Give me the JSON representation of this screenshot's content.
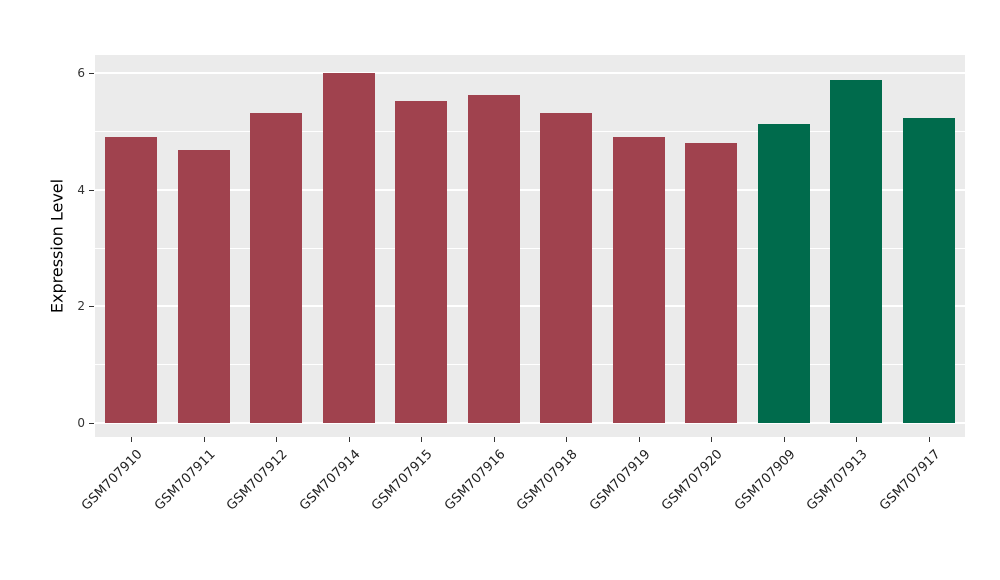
{
  "chart_data": {
    "type": "bar",
    "title": "",
    "xlabel": "",
    "ylabel": "Expression Level",
    "categories": [
      "GSM707910",
      "GSM707911",
      "GSM707912",
      "GSM707914",
      "GSM707915",
      "GSM707916",
      "GSM707918",
      "GSM707919",
      "GSM707920",
      "GSM707909",
      "GSM707913",
      "GSM707917"
    ],
    "values": [
      4.9,
      4.68,
      5.31,
      6.0,
      5.52,
      5.62,
      5.31,
      4.9,
      4.8,
      5.13,
      5.88,
      5.23
    ],
    "bar_colors": [
      "#A0424E",
      "#A0424E",
      "#A0424E",
      "#A0424E",
      "#A0424E",
      "#A0424E",
      "#A0424E",
      "#A0424E",
      "#A0424E",
      "#006B4C",
      "#006B4C",
      "#006B4C"
    ],
    "group_colors": {
      "group1": "#A0424E",
      "group2": "#006B4C"
    },
    "ylim": [
      0,
      6.3
    ],
    "yticks": [
      0,
      2,
      4,
      6
    ],
    "ytick_labels": [
      "0",
      "2",
      "4",
      "6"
    ],
    "minor_ticks": [
      1,
      3,
      5
    ],
    "grid": "on",
    "legend": "none",
    "panel_background": "#EBEBEB",
    "grid_color": "#FFFFFF",
    "page_background": "#FFFFFF"
  }
}
